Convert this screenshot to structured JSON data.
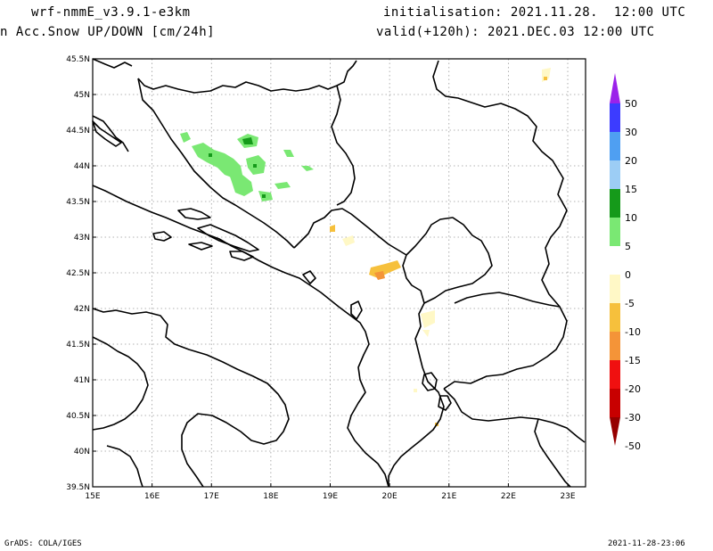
{
  "header": {
    "model": "wrf-nmmE_v3.9.1-e3km",
    "init": "initialisation: 2021.11.28.  12:00 UTC",
    "variable": "n Acc.Snow UP/DOWN [cm/24h]",
    "valid": "valid(+120h): 2021.DEC.03 12:00 UTC"
  },
  "footer": {
    "credit": "GrADS: COLA/IGES",
    "timestamp": "2021-11-28-23:06"
  },
  "map": {
    "lon_ticks": [
      "15E",
      "16E",
      "17E",
      "18E",
      "19E",
      "20E",
      "21E",
      "22E",
      "23E"
    ],
    "lat_ticks": [
      "45.5N",
      "45N",
      "44.5N",
      "44N",
      "43.5N",
      "43N",
      "42.5N",
      "42N",
      "41.5N",
      "41N",
      "40.5N",
      "40N",
      "39.5N"
    ],
    "lon_range": [
      15,
      23.3
    ],
    "lat_range": [
      39.5,
      45.5
    ]
  },
  "colorbar": {
    "labels": [
      "50",
      "30",
      "20",
      "15",
      "10",
      "5",
      "0",
      "-5",
      "-10",
      "-15",
      "-20",
      "-30",
      "-50"
    ],
    "colors": [
      "#9b22ea",
      "#3c3cff",
      "#4f9ff2",
      "#9ccdf5",
      "#159a1a",
      "#7ae873",
      "#ffffff",
      "#fff8c6",
      "#f6c03c",
      "#f49438",
      "#f01010",
      "#c80000",
      "#960000"
    ]
  }
}
